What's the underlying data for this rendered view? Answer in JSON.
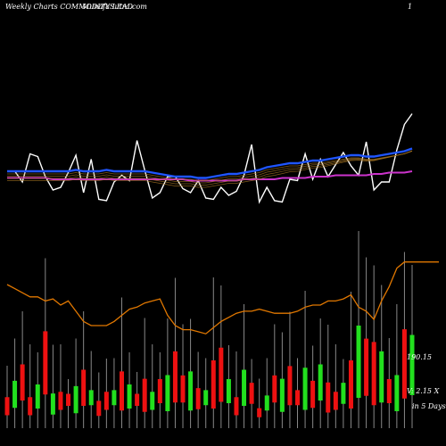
{
  "header": {
    "left": "Weekly Charts COMMODITY LEAD",
    "center": "MunafaSutra.com",
    "right": "1"
  },
  "side_labels": {
    "price": "190.15",
    "volume": "V: 2.15 X",
    "days": "in 5 Days"
  },
  "colors": {
    "bull": "#22e01e",
    "bear": "#ee1111",
    "wick": "#888888",
    "ma_orange": "#e07700",
    "rsi": "#ffffff",
    "ma_fast": "#1f55ff",
    "ma_slow": "#cc33cc",
    "ma_mid": "#a07020"
  },
  "chart_data": [
    {
      "type": "line",
      "title": "",
      "series": [
        {
          "values": [
            52,
            52,
            44,
            65,
            63,
            48,
            38,
            40,
            51,
            64,
            36,
            61,
            31,
            30,
            44,
            49,
            45,
            75,
            53,
            32,
            36,
            48,
            48,
            39,
            36,
            45,
            32,
            31,
            40,
            34,
            37,
            49,
            72,
            29,
            40,
            30,
            29,
            46,
            45,
            65,
            46,
            61,
            48,
            57,
            66,
            56,
            49,
            74,
            38,
            44,
            44,
            68,
            87,
            95
          ]
        },
        {
          "values": [
            52,
            52,
            52,
            52,
            52,
            52,
            52,
            52,
            52,
            53,
            52,
            52,
            52,
            53,
            52,
            52,
            52,
            52,
            52,
            51,
            50,
            49,
            48,
            48,
            48,
            47,
            47,
            48,
            49,
            50,
            50,
            51,
            52,
            53,
            55,
            56,
            57,
            58,
            58,
            59,
            60,
            60,
            61,
            62,
            63,
            64,
            64,
            63,
            63,
            64,
            65,
            66,
            67,
            69
          ]
        },
        {
          "values": [
            47,
            47,
            47,
            47,
            47,
            47,
            46,
            46,
            46,
            46,
            46,
            46,
            46,
            46,
            46,
            46,
            46,
            46,
            46,
            46,
            46,
            46,
            46,
            46,
            45,
            45,
            45,
            45,
            45,
            45,
            45,
            46,
            46,
            46,
            46,
            46,
            47,
            47,
            47,
            47,
            48,
            48,
            48,
            49,
            49,
            49,
            49,
            49,
            50,
            50,
            51,
            51,
            51,
            52
          ]
        }
      ]
    },
    {
      "type": "bar",
      "title": "",
      "values": [
        6,
        9,
        12,
        6,
        8,
        21,
        7,
        6,
        4,
        9,
        12,
        5,
        5,
        6,
        5,
        13,
        8,
        4,
        11,
        6,
        8,
        12,
        17,
        9,
        13,
        7,
        5,
        16,
        18,
        8,
        6,
        12,
        7,
        3,
        5,
        9,
        11,
        13,
        5,
        14,
        9,
        12,
        10,
        6,
        7,
        16,
        24,
        19,
        21,
        17,
        8,
        12,
        23,
        20
      ]
    },
    {
      "type": "line",
      "title": "",
      "values": [
        70,
        68,
        66,
        64,
        64,
        62,
        63,
        60,
        62,
        57,
        52,
        50,
        50,
        50,
        52,
        55,
        58,
        59,
        61,
        62,
        63,
        55,
        50,
        48,
        48,
        47,
        46,
        49,
        52,
        54,
        56,
        57,
        57,
        58,
        57,
        56,
        56,
        56,
        57,
        59,
        60,
        60,
        62,
        62,
        63,
        65,
        59,
        57,
        53,
        62,
        69,
        78,
        81,
        81
      ]
    }
  ]
}
